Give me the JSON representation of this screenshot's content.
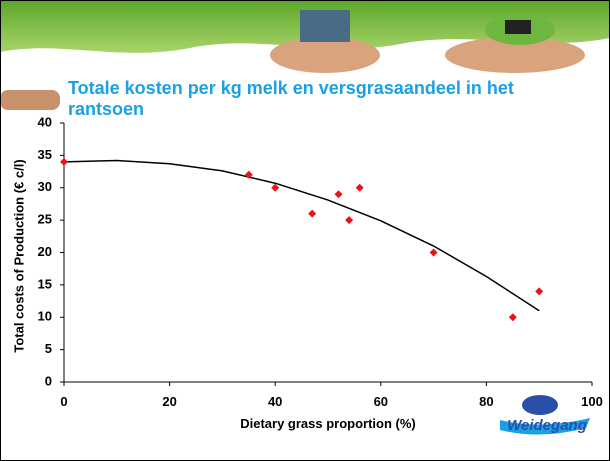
{
  "chart_data": {
    "type": "scatter",
    "title": "Totale kosten per kg melk en versgrasaandeel in het rantsoen",
    "x_label": "Dietary grass proportion (%)",
    "y_label": "Total costs of Production (€ c/l)",
    "logo": "Weidegang",
    "x": [
      0,
      35,
      40,
      47,
      52,
      54,
      56,
      70,
      85,
      90
    ],
    "values": [
      34,
      32,
      30,
      26,
      29,
      25,
      30,
      20,
      10,
      14
    ],
    "color": "#e8141c",
    "trendline": {
      "x": [
        0,
        10,
        20,
        30,
        40,
        50,
        60,
        70,
        80,
        90
      ],
      "values": [
        34,
        34.2,
        33.7,
        32.6,
        30.7,
        28.1,
        24.9,
        21.0,
        16.3,
        11.0
      ],
      "color": "#000000"
    },
    "xlim": [
      0,
      100
    ],
    "xticks": [
      0,
      20,
      40,
      60,
      80,
      100
    ],
    "ylim": [
      0,
      40
    ],
    "yticks": [
      0,
      5,
      10,
      15,
      20,
      25,
      30,
      35,
      40
    ]
  }
}
